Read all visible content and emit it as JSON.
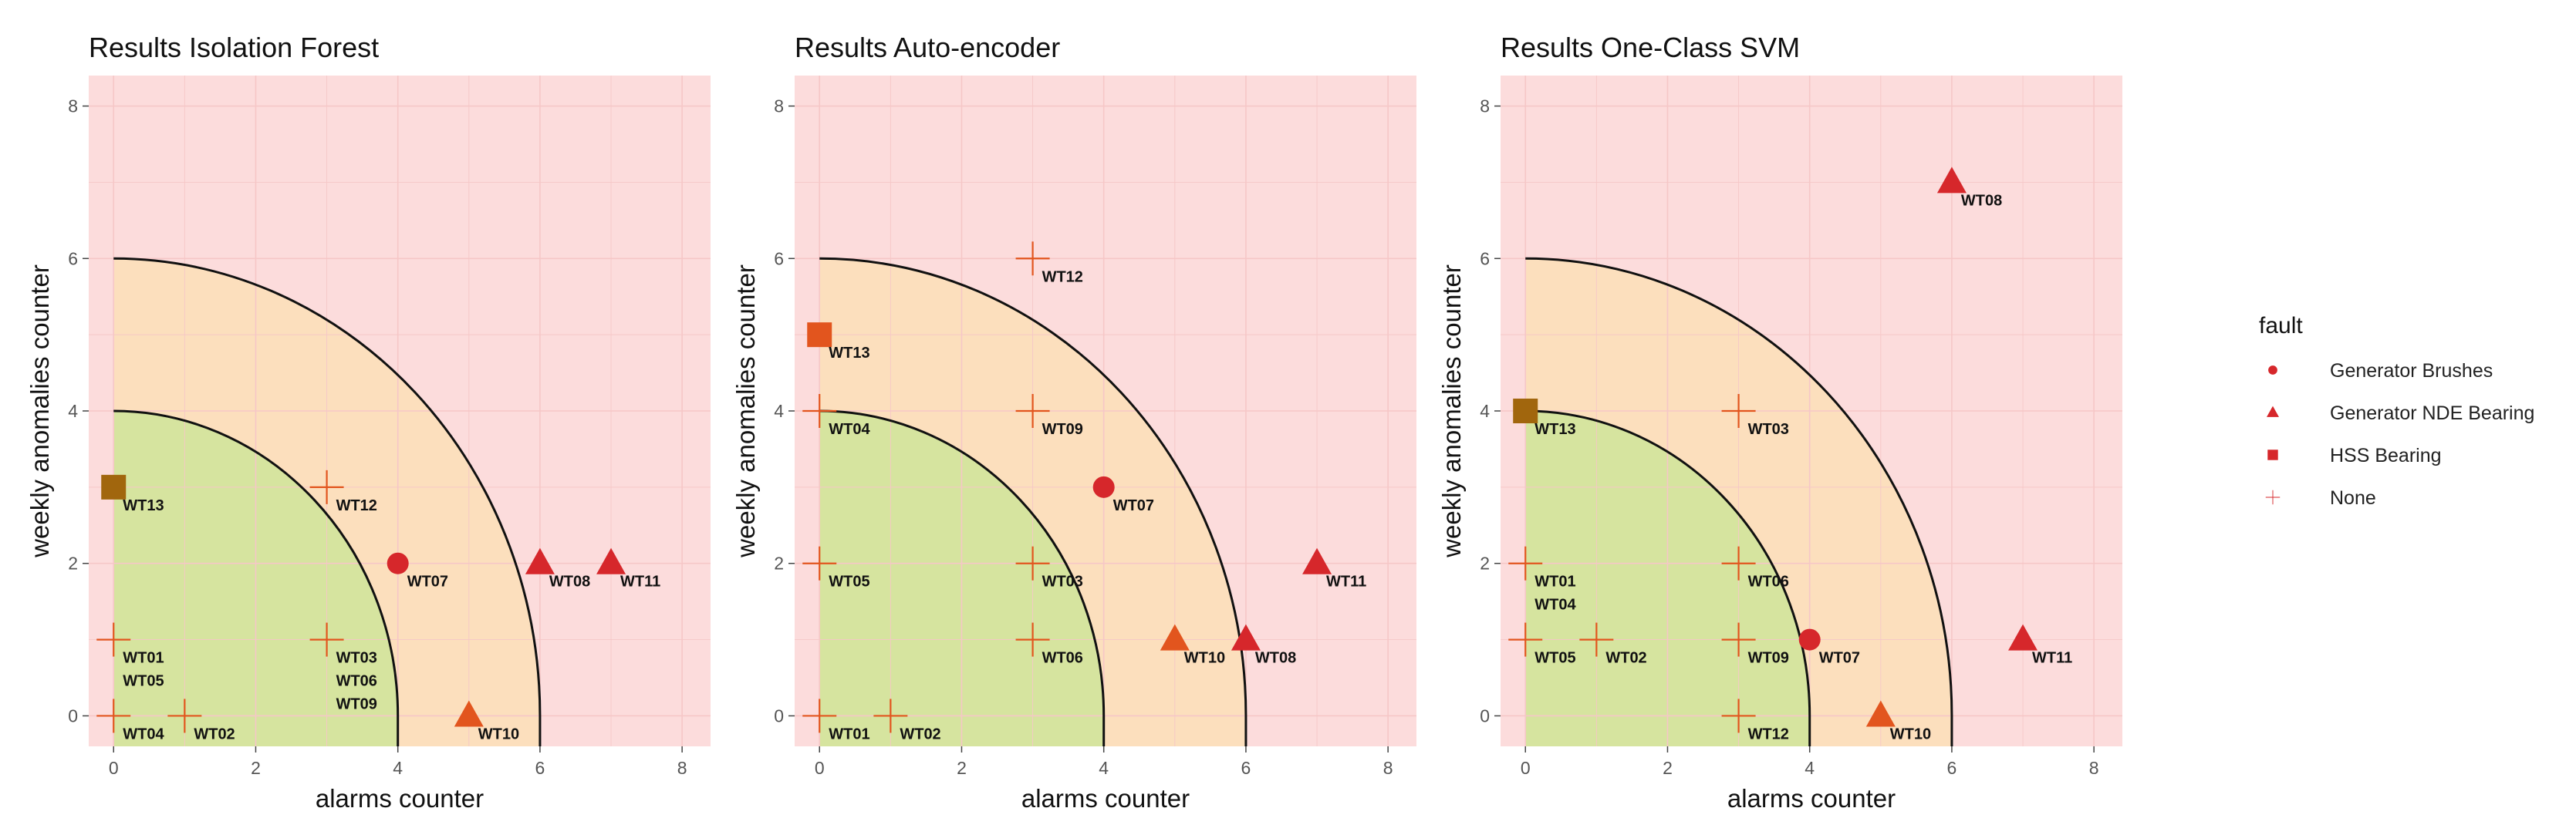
{
  "colors": {
    "zone_red": "#fcdcdc",
    "zone_orange": "#fcdfbd",
    "zone_green": "#d6e49f",
    "grid": "#f6c7c7",
    "boundary": "#111111",
    "marker_red": "#d6272b",
    "marker_orange": "#e2551e",
    "marker_brown": "#a1660d"
  },
  "legend": {
    "title": "fault",
    "items": [
      {
        "label": "Generator Brushes",
        "shape": "circle"
      },
      {
        "label": "Generator NDE Bearing",
        "shape": "triangle"
      },
      {
        "label": "HSS Bearing",
        "shape": "square"
      },
      {
        "label": "None",
        "shape": "cross"
      }
    ]
  },
  "chart_data": [
    {
      "type": "scatter",
      "title": "Results Isolation Forest",
      "xlabel": "alarms counter",
      "ylabel": "weekly anomalies counter",
      "xlim": [
        -0.35,
        8.4
      ],
      "ylim": [
        -0.4,
        8.4
      ],
      "xticks": [
        0,
        2,
        4,
        6,
        8
      ],
      "yticks": [
        0,
        2,
        4,
        6,
        8
      ],
      "zones": {
        "inner_radius": 4,
        "outer_radius": 6
      },
      "grid": true,
      "points": [
        {
          "x": 0,
          "y": 3,
          "fault": "HSS Bearing",
          "labels": [
            "WT13"
          ],
          "color": "brown"
        },
        {
          "x": 3,
          "y": 3,
          "fault": "None",
          "labels": [
            "WT12"
          ]
        },
        {
          "x": 4,
          "y": 2,
          "fault": "Generator Brushes",
          "labels": [
            "WT07"
          ]
        },
        {
          "x": 6,
          "y": 2,
          "fault": "Generator NDE Bearing",
          "labels": [
            "WT08"
          ]
        },
        {
          "x": 7,
          "y": 2,
          "fault": "Generator NDE Bearing",
          "labels": [
            "WT11"
          ]
        },
        {
          "x": 0,
          "y": 1,
          "fault": "None",
          "labels": [
            "WT01",
            "WT05"
          ]
        },
        {
          "x": 3,
          "y": 1,
          "fault": "None",
          "labels": [
            "WT03",
            "WT06",
            "WT09"
          ]
        },
        {
          "x": 0,
          "y": 0,
          "fault": "None",
          "labels": [
            "WT04"
          ]
        },
        {
          "x": 1,
          "y": 0,
          "fault": "None",
          "labels": [
            "WT02"
          ]
        },
        {
          "x": 5,
          "y": 0,
          "fault": "Generator NDE Bearing",
          "labels": [
            "WT10"
          ]
        }
      ]
    },
    {
      "type": "scatter",
      "title": "Results Auto-encoder",
      "xlabel": "alarms counter",
      "ylabel": "weekly anomalies counter",
      "xlim": [
        -0.35,
        8.4
      ],
      "ylim": [
        -0.4,
        8.4
      ],
      "xticks": [
        0,
        2,
        4,
        6,
        8
      ],
      "yticks": [
        0,
        2,
        4,
        6,
        8
      ],
      "zones": {
        "inner_radius": 4,
        "outer_radius": 6
      },
      "grid": true,
      "points": [
        {
          "x": 3,
          "y": 6,
          "fault": "None",
          "labels": [
            "WT12"
          ]
        },
        {
          "x": 0,
          "y": 5,
          "fault": "HSS Bearing",
          "labels": [
            "WT13"
          ]
        },
        {
          "x": 0,
          "y": 4,
          "fault": "None",
          "labels": [
            "WT04"
          ]
        },
        {
          "x": 3,
          "y": 4,
          "fault": "None",
          "labels": [
            "WT09"
          ]
        },
        {
          "x": 4,
          "y": 3,
          "fault": "Generator Brushes",
          "labels": [
            "WT07"
          ]
        },
        {
          "x": 0,
          "y": 2,
          "fault": "None",
          "labels": [
            "WT05"
          ]
        },
        {
          "x": 3,
          "y": 2,
          "fault": "None",
          "labels": [
            "WT03"
          ]
        },
        {
          "x": 7,
          "y": 2,
          "fault": "Generator NDE Bearing",
          "labels": [
            "WT11"
          ]
        },
        {
          "x": 3,
          "y": 1,
          "fault": "None",
          "labels": [
            "WT06"
          ]
        },
        {
          "x": 5,
          "y": 1,
          "fault": "Generator NDE Bearing",
          "labels": [
            "WT10"
          ]
        },
        {
          "x": 6,
          "y": 1,
          "fault": "Generator NDE Bearing",
          "labels": [
            "WT08"
          ]
        },
        {
          "x": 0,
          "y": 0,
          "fault": "None",
          "labels": [
            "WT01"
          ]
        },
        {
          "x": 1,
          "y": 0,
          "fault": "None",
          "labels": [
            "WT02"
          ]
        }
      ]
    },
    {
      "type": "scatter",
      "title": "Results One-Class SVM",
      "xlabel": "alarms counter",
      "ylabel": "weekly anomalies counter",
      "xlim": [
        -0.35,
        8.4
      ],
      "ylim": [
        -0.4,
        8.4
      ],
      "xticks": [
        0,
        2,
        4,
        6,
        8
      ],
      "yticks": [
        0,
        2,
        4,
        6,
        8
      ],
      "zones": {
        "inner_radius": 4,
        "outer_radius": 6
      },
      "grid": true,
      "points": [
        {
          "x": 6,
          "y": 7,
          "fault": "Generator NDE Bearing",
          "labels": [
            "WT08"
          ]
        },
        {
          "x": 0,
          "y": 4,
          "fault": "HSS Bearing",
          "labels": [
            "WT13"
          ],
          "color": "brown"
        },
        {
          "x": 3,
          "y": 4,
          "fault": "None",
          "labels": [
            "WT03"
          ]
        },
        {
          "x": 0,
          "y": 2,
          "fault": "None",
          "labels": [
            "WT01",
            "WT04"
          ]
        },
        {
          "x": 3,
          "y": 2,
          "fault": "None",
          "labels": [
            "WT06"
          ]
        },
        {
          "x": 0,
          "y": 1,
          "fault": "None",
          "labels": [
            "WT05"
          ]
        },
        {
          "x": 1,
          "y": 1,
          "fault": "None",
          "labels": [
            "WT02"
          ]
        },
        {
          "x": 3,
          "y": 1,
          "fault": "None",
          "labels": [
            "WT09"
          ]
        },
        {
          "x": 4,
          "y": 1,
          "fault": "Generator Brushes",
          "labels": [
            "WT07"
          ]
        },
        {
          "x": 7,
          "y": 1,
          "fault": "Generator NDE Bearing",
          "labels": [
            "WT11"
          ]
        },
        {
          "x": 3,
          "y": 0,
          "fault": "None",
          "labels": [
            "WT12"
          ]
        },
        {
          "x": 5,
          "y": 0,
          "fault": "Generator NDE Bearing",
          "labels": [
            "WT10"
          ]
        }
      ]
    }
  ]
}
